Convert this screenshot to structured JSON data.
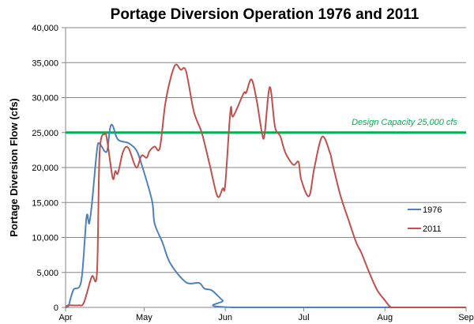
{
  "chart_data": {
    "type": "line",
    "title": "Portage Diversion Operation 1976 and 2011",
    "xlabel": "",
    "ylabel": "Portage Diversion Flow (cfs)",
    "ylim": [
      0,
      40000
    ],
    "yticks": [
      0,
      5000,
      10000,
      15000,
      20000,
      25000,
      30000,
      35000,
      40000
    ],
    "ytick_labels": [
      "0",
      "5,000",
      "10,000",
      "15,000",
      "20,000",
      "25,000",
      "30,000",
      "35,000",
      "40,000"
    ],
    "xlim": [
      "Apr 1",
      "Sep 1"
    ],
    "xtick_labels": [
      "Apr",
      "May",
      "Jun",
      "Jul",
      "Aug",
      "Sep"
    ],
    "xticks": [
      "Apr 1",
      "May 1",
      "Jun 1",
      "Jul 1",
      "Aug 1",
      "Sep 1"
    ],
    "grid": "horizontal",
    "legend_position": "right",
    "reference_line": {
      "value": 25000,
      "label": "Design Capacity 25,000 cfs",
      "color": "#00B050"
    },
    "series": [
      {
        "name": "1976",
        "color": "#4F81BD",
        "points": [
          [
            "Apr 1",
            0
          ],
          [
            "Apr 2",
            100
          ],
          [
            "Apr 4",
            2500
          ],
          [
            "Apr 7",
            3800
          ],
          [
            "Apr 9",
            12900
          ],
          [
            "Apr 10",
            12000
          ],
          [
            "Apr 11",
            14600
          ],
          [
            "Apr 13",
            22500
          ],
          [
            "Apr 14",
            23400
          ],
          [
            "Apr 16",
            22300
          ],
          [
            "Apr 17",
            22600
          ],
          [
            "Apr 18",
            25600
          ],
          [
            "Apr 19",
            26000
          ],
          [
            "Apr 21",
            24000
          ],
          [
            "Apr 25",
            23500
          ],
          [
            "Apr 28",
            22500
          ],
          [
            "Apr 30",
            20500
          ],
          [
            "May 4",
            15300
          ],
          [
            "May 5",
            12000
          ],
          [
            "May 8",
            9300
          ],
          [
            "May 11",
            6300
          ],
          [
            "May 17",
            3600
          ],
          [
            "May 22",
            3500
          ],
          [
            "May 24",
            2700
          ],
          [
            "May 27",
            2400
          ],
          [
            "May 31",
            1000
          ],
          [
            "Jun 4",
            0
          ],
          [
            "Sep 1",
            0
          ]
        ]
      },
      {
        "name": "2011",
        "color": "#C0504D",
        "points": [
          [
            "Apr 1",
            0
          ],
          [
            "Apr 2",
            300
          ],
          [
            "Apr 6",
            300
          ],
          [
            "Apr 8",
            700
          ],
          [
            "Apr 11",
            4400
          ],
          [
            "Apr 13",
            5000
          ],
          [
            "Apr 14",
            22100
          ],
          [
            "Apr 16",
            24800
          ],
          [
            "Apr 17",
            23600
          ],
          [
            "Apr 19",
            18500
          ],
          [
            "Apr 20",
            19500
          ],
          [
            "Apr 21",
            19200
          ],
          [
            "Apr 23",
            22300
          ],
          [
            "Apr 25",
            22800
          ],
          [
            "Apr 28",
            20000
          ],
          [
            "Apr 30",
            21700
          ],
          [
            "May 2",
            21400
          ],
          [
            "May 3",
            22300
          ],
          [
            "May 5",
            23000
          ],
          [
            "May 7",
            22800
          ],
          [
            "May 9",
            28900
          ],
          [
            "May 11",
            32600
          ],
          [
            "May 13",
            34700
          ],
          [
            "May 15",
            34000
          ],
          [
            "May 17",
            33800
          ],
          [
            "May 20",
            28000
          ],
          [
            "May 23",
            25000
          ],
          [
            "May 26",
            20500
          ],
          [
            "May 29",
            15900
          ],
          [
            "May 31",
            17000
          ],
          [
            "Jun 1",
            17600
          ],
          [
            "Jun 3",
            28200
          ],
          [
            "Jun 4",
            27300
          ],
          [
            "Jun 8",
            30600
          ],
          [
            "Jun 9",
            30700
          ],
          [
            "Jun 11",
            32600
          ],
          [
            "Jun 13",
            29600
          ],
          [
            "Jun 15",
            25000
          ],
          [
            "Jun 16",
            24700
          ],
          [
            "Jun 18",
            31500
          ],
          [
            "Jun 20",
            25800
          ],
          [
            "Jun 22",
            24500
          ],
          [
            "Jun 24",
            22100
          ],
          [
            "Jun 27",
            20400
          ],
          [
            "Jun 29",
            20800
          ],
          [
            "Jun 30",
            18300
          ],
          [
            "Jul 3",
            15900
          ],
          [
            "Jul 5",
            19900
          ],
          [
            "Jul 8",
            24400
          ],
          [
            "Jul 11",
            22100
          ],
          [
            "Jul 12",
            20500
          ],
          [
            "Jul 15",
            16000
          ],
          [
            "Jul 18",
            12600
          ],
          [
            "Jul 21",
            9300
          ],
          [
            "Jul 23",
            7800
          ],
          [
            "Jul 26",
            5000
          ],
          [
            "Jul 29",
            2500
          ],
          [
            "Aug 1",
            1000
          ],
          [
            "Aug 3",
            100
          ],
          [
            "Aug 5",
            0
          ],
          [
            "Sep 1",
            0
          ]
        ]
      }
    ]
  }
}
